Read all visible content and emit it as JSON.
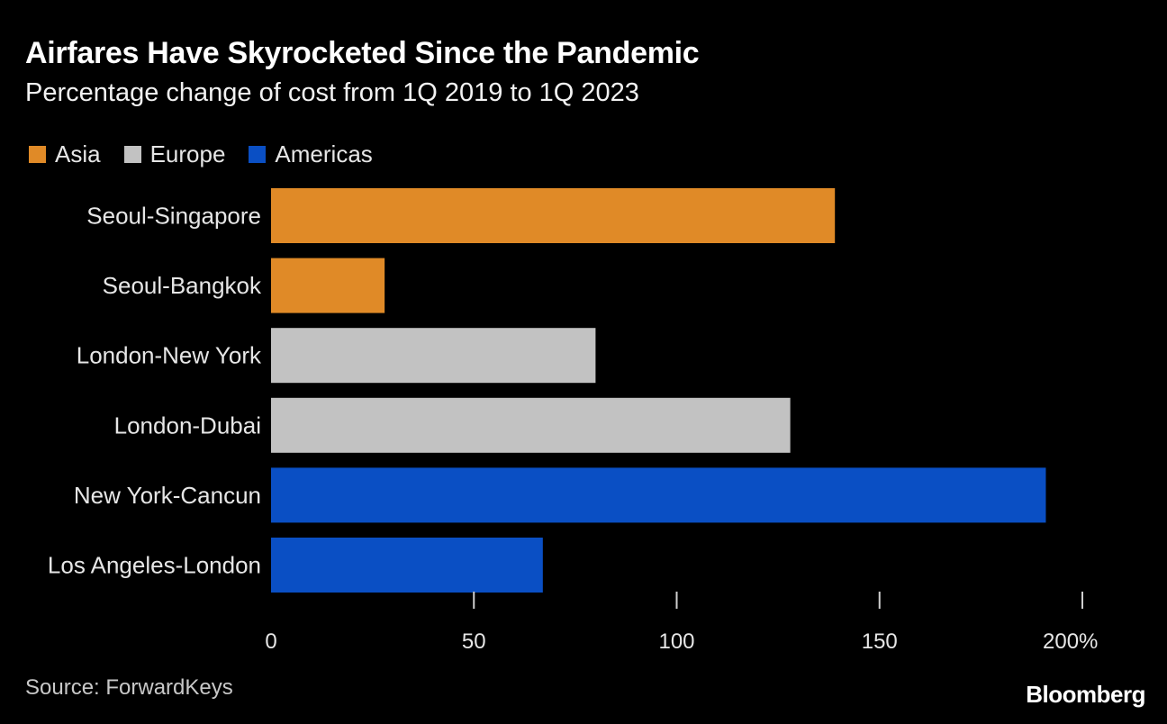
{
  "header": {
    "title": "Airfares Have Skyrocketed Since the Pandemic",
    "subtitle": "Percentage change of cost from 1Q 2019 to 1Q 2023"
  },
  "legend": [
    {
      "label": "Asia",
      "color": "#e08a27"
    },
    {
      "label": "Europe",
      "color": "#c2c2c2"
    },
    {
      "label": "Americas",
      "color": "#0a4fc4"
    }
  ],
  "chart_data": {
    "type": "bar",
    "orientation": "horizontal",
    "title": "Airfares Have Skyrocketed Since the Pandemic",
    "subtitle": "Percentage change of cost from 1Q 2019 to 1Q 2023",
    "categories": [
      "Seoul-Singapore",
      "Seoul-Bangkok",
      "London-New York",
      "London-Dubai",
      "New York-Cancun",
      "Los Angeles-London"
    ],
    "values": [
      139,
      28,
      80,
      128,
      191,
      67
    ],
    "groups": [
      "Asia",
      "Asia",
      "Europe",
      "Europe",
      "Americas",
      "Americas"
    ],
    "group_colors": {
      "Asia": "#e08a27",
      "Europe": "#c2c2c2",
      "Americas": "#0a4fc4"
    },
    "xlim": [
      0,
      200
    ],
    "ticks": [
      0,
      50,
      100,
      150,
      200
    ],
    "tick_labels": [
      "0",
      "50",
      "100",
      "150",
      "200%"
    ],
    "xlabel": "",
    "ylabel": "",
    "legend_position": "top-left",
    "grid": false
  },
  "footer": {
    "source": "Source: ForwardKeys",
    "brand": "Bloomberg"
  }
}
